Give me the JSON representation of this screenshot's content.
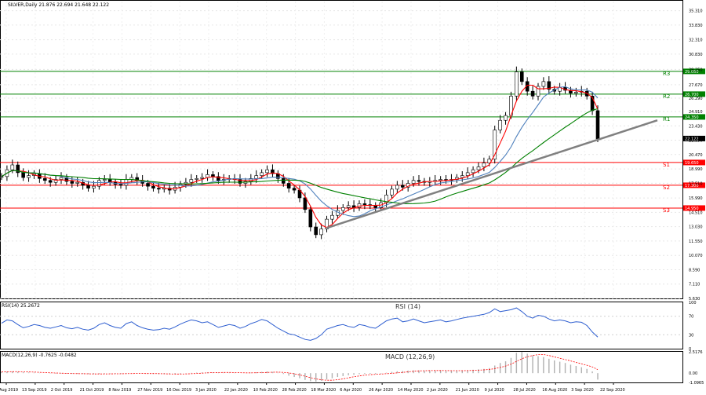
{
  "header": {
    "symbol_line": "SILVER,Daily  21.876 22.694 21.648 22.122"
  },
  "chart_data": [
    {
      "type": "candlestick",
      "panel": "price",
      "ylim": [
        5.63,
        36.25
      ],
      "y_ticks": [
        "35.310",
        "33.830",
        "32.310",
        "30.830",
        "29.250",
        "27.670",
        "26.290",
        "24.910",
        "23.430",
        "21.950",
        "20.470",
        "18.990",
        "17.510",
        "15.990",
        "14.510",
        "13.030",
        "11.550",
        "10.070",
        "8.590",
        "7.110",
        "5.630"
      ],
      "x_ticks": [
        "26 Aug 2019",
        "13 Sep 2019",
        "2 Oct 2019",
        "21 Oct 2019",
        "8 Nov 2019",
        "27 Nov 2019",
        "16 Dec 2019",
        "3 Jan 2020",
        "22 Jan 2020",
        "10 Feb 2020",
        "28 Feb 2020",
        "18 Mar 2020",
        "6 Apr 2020",
        "26 Apr 2020",
        "14 May 2020",
        "2 Jun 2020",
        "21 Jun 2020",
        "9 Jul 2020",
        "28 Jul 2020",
        "16 Aug 2020",
        "3 Sep 2020",
        "22 Sep 2020"
      ],
      "last_price": "22.122",
      "levels": [
        {
          "name": "R3",
          "value": 29.05,
          "label": "29.050",
          "color": "#008000"
        },
        {
          "name": "R2",
          "value": 26.7,
          "label": "26.700",
          "color": "#008000"
        },
        {
          "name": "R1",
          "value": 24.35,
          "label": "24.350",
          "color": "#008000"
        },
        {
          "name": "S1",
          "value": 19.65,
          "label": "19.650",
          "color": "#ff0000"
        },
        {
          "name": "S2",
          "value": 17.3,
          "label": "17.300",
          "color": "#ff0000"
        },
        {
          "name": "S3",
          "value": 14.95,
          "label": "14.950",
          "color": "#ff0000"
        }
      ],
      "candles": [
        18.2,
        18.9,
        19.4,
        18.6,
        18.1,
        18.3,
        18.5,
        18.0,
        17.8,
        17.6,
        17.9,
        18.1,
        17.7,
        17.5,
        17.6,
        17.3,
        17.0,
        17.2,
        17.8,
        17.9,
        17.6,
        17.4,
        17.3,
        17.9,
        18.1,
        17.8,
        17.5,
        17.2,
        17.0,
        16.9,
        17.0,
        16.8,
        17.1,
        17.4,
        17.6,
        17.9,
        18.0,
        18.1,
        18.4,
        18.2,
        17.8,
        17.9,
        18.0,
        17.9,
        17.5,
        17.7,
        18.0,
        18.3,
        18.6,
        18.9,
        18.5,
        18.0,
        17.5,
        17.0,
        16.8,
        16.0,
        14.8,
        13.0,
        12.2,
        12.8,
        13.8,
        14.2,
        14.7,
        15.0,
        15.2,
        15.0,
        15.4,
        15.3,
        15.2,
        15.0,
        15.5,
        16.3,
        16.9,
        17.3,
        17.1,
        17.5,
        17.8,
        17.7,
        17.6,
        17.7,
        17.8,
        17.9,
        17.8,
        17.9,
        18.1,
        18.3,
        18.6,
        18.9,
        19.2,
        19.6,
        20.0,
        23.0,
        24.0,
        24.5,
        26.5,
        29.0,
        28.0,
        27.0,
        26.5,
        27.5,
        28.0,
        27.2,
        27.0,
        27.4,
        27.1,
        26.8,
        26.9,
        27.0,
        26.5,
        25.0,
        22.1
      ],
      "series": [
        {
          "name": "MA fast",
          "color": "#ff0000"
        },
        {
          "name": "MA medium",
          "color": "#4f81bd"
        },
        {
          "name": "MA slow",
          "color": "#008000"
        }
      ],
      "trendline": {
        "color": "#808080"
      }
    },
    {
      "type": "line",
      "panel": "rsi",
      "header": "RSI(14) 25.2672",
      "title": "RSI (14)",
      "ylim": [
        0,
        100
      ],
      "y_ticks": [
        "100",
        "70",
        "30",
        "0"
      ],
      "values": [
        55,
        62,
        60,
        52,
        45,
        48,
        52,
        50,
        46,
        44,
        47,
        50,
        45,
        43,
        46,
        42,
        40,
        44,
        52,
        56,
        50,
        46,
        44,
        54,
        58,
        50,
        45,
        42,
        40,
        41,
        44,
        42,
        47,
        53,
        58,
        62,
        60,
        56,
        58,
        52,
        46,
        49,
        52,
        50,
        44,
        48,
        54,
        58,
        63,
        60,
        52,
        44,
        38,
        32,
        30,
        25,
        20,
        18,
        22,
        30,
        42,
        46,
        50,
        52,
        48,
        46,
        52,
        50,
        46,
        44,
        52,
        60,
        64,
        66,
        58,
        60,
        64,
        60,
        56,
        58,
        60,
        62,
        58,
        60,
        63,
        66,
        68,
        70,
        72,
        74,
        78,
        86,
        80,
        82,
        84,
        88,
        80,
        70,
        66,
        72,
        70,
        64,
        60,
        62,
        60,
        56,
        58,
        57,
        50,
        36,
        25
      ]
    },
    {
      "type": "bar",
      "panel": "macd",
      "header": "MACD(12,26,9) -0.7625 -0.0482",
      "title": "MACD (12,26,9)",
      "y_ticks": [
        "2.5176",
        "0.00",
        "-1.0965"
      ],
      "values": [
        0.15,
        0.18,
        0.2,
        0.15,
        0.1,
        0.08,
        0.06,
        0.03,
        0.0,
        -0.03,
        -0.05,
        -0.05,
        -0.06,
        -0.08,
        -0.08,
        -0.1,
        -0.12,
        -0.12,
        -0.08,
        -0.05,
        -0.05,
        -0.06,
        -0.08,
        -0.04,
        0.0,
        -0.02,
        -0.05,
        -0.08,
        -0.1,
        -0.12,
        -0.12,
        -0.13,
        -0.1,
        -0.06,
        -0.02,
        0.03,
        0.06,
        0.08,
        0.1,
        0.1,
        0.07,
        0.06,
        0.05,
        0.04,
        0.0,
        0.0,
        0.05,
        0.1,
        0.15,
        0.2,
        0.15,
        0.05,
        -0.1,
        -0.3,
        -0.45,
        -0.6,
        -0.8,
        -0.95,
        -1.0,
        -0.9,
        -0.75,
        -0.6,
        -0.45,
        -0.35,
        -0.25,
        -0.2,
        -0.12,
        -0.1,
        -0.08,
        -0.1,
        -0.05,
        0.05,
        0.15,
        0.22,
        0.25,
        0.3,
        0.33,
        0.32,
        0.3,
        0.3,
        0.3,
        0.3,
        0.28,
        0.28,
        0.3,
        0.32,
        0.35,
        0.4,
        0.45,
        0.5,
        0.6,
        0.9,
        1.2,
        1.4,
        1.8,
        2.4,
        2.5,
        2.3,
        2.1,
        2.0,
        1.9,
        1.7,
        1.5,
        1.35,
        1.2,
        1.0,
        0.85,
        0.7,
        0.5,
        0.2,
        -0.76
      ],
      "signal_color": "#ff0000"
    }
  ]
}
